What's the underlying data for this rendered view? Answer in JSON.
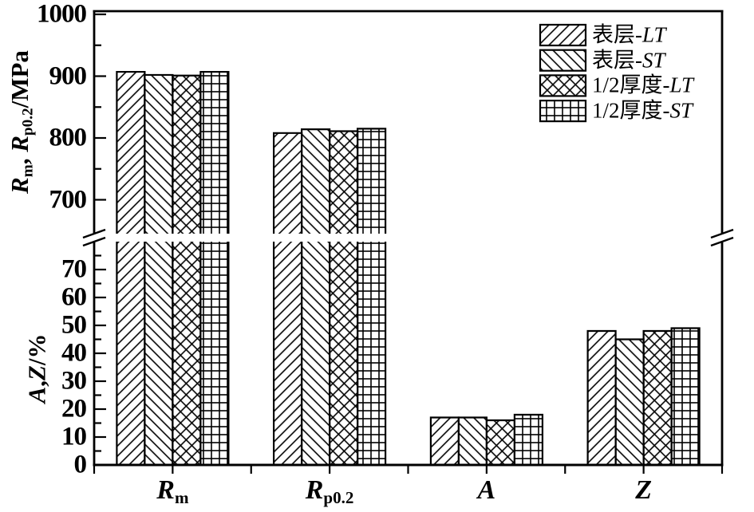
{
  "figure": {
    "background_color": "#ffffff",
    "ink_color": "#000000"
  },
  "chart_data": {
    "type": "bar",
    "broken_y_axis": true,
    "legend_position": "top-right-inside",
    "categories": [
      {
        "label_main": "R",
        "label_sub": "m",
        "scale": "MPa"
      },
      {
        "label_main": "R",
        "label_sub": "p0.2",
        "scale": "MPa"
      },
      {
        "label_main": "A",
        "label_sub": "",
        "scale": "percent"
      },
      {
        "label_main": "Z",
        "label_sub": "",
        "scale": "percent"
      }
    ],
    "series": [
      {
        "name": "表层-LT",
        "name_prefix": "表层-",
        "name_suffix": "LT",
        "pattern": "diagonal-up",
        "values": [
          907,
          808,
          17,
          48
        ]
      },
      {
        "name": "表层-ST",
        "name_prefix": "表层-",
        "name_suffix": "ST",
        "pattern": "diagonal-down",
        "values": [
          902,
          814,
          17,
          45
        ]
      },
      {
        "name": "1/2厚度-LT",
        "name_prefix": "1/2厚度-",
        "name_suffix": "LT",
        "pattern": "crosshatch",
        "values": [
          901,
          811,
          16,
          48
        ]
      },
      {
        "name": "1/2厚度-ST",
        "name_prefix": "1/2厚度-",
        "name_suffix": "ST",
        "pattern": "grid",
        "values": [
          907,
          815,
          18,
          49
        ]
      }
    ],
    "top_axis": {
      "unit": "MPa",
      "range_labeled": [
        700,
        1000
      ],
      "major_ticks": [
        1000,
        900,
        800,
        700
      ],
      "minor_ticks": [
        950,
        850,
        750
      ],
      "title_segments": [
        {
          "text": "R",
          "style": "bold-italic"
        },
        {
          "text": "m",
          "style": "sub"
        },
        {
          "text": ", ",
          "style": "bold"
        },
        {
          "text": "R",
          "style": "bold-italic"
        },
        {
          "text": "p0.2",
          "style": "sub"
        },
        {
          "text": "/MPa",
          "style": "bold"
        }
      ]
    },
    "bottom_axis": {
      "unit": "%",
      "range_labeled": [
        0,
        70
      ],
      "major_ticks": [
        70,
        60,
        50,
        40,
        30,
        20,
        10,
        0
      ],
      "minor_ticks": [
        75,
        65,
        55,
        45,
        35,
        25,
        15,
        5
      ],
      "title_segments": [
        {
          "text": "A",
          "style": "bold-italic"
        },
        {
          "text": ",",
          "style": "bold"
        },
        {
          "text": "Z",
          "style": "bold-italic"
        },
        {
          "text": "/%",
          "style": "bold"
        }
      ]
    }
  }
}
